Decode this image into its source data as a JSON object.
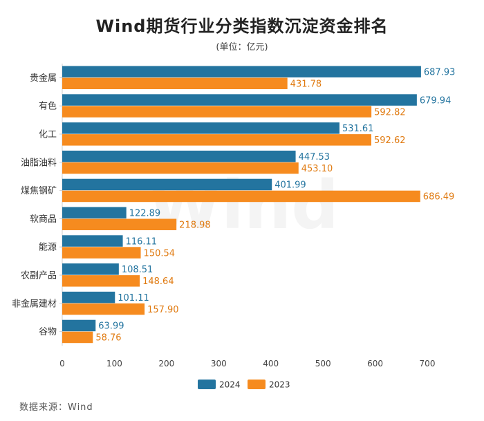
{
  "chart_data": {
    "type": "bar",
    "orientation": "horizontal",
    "title": "Wind期货行业分类指数沉淀资金排名",
    "subtitle": "(单位：亿元)",
    "categories": [
      "贵金属",
      "有色",
      "化工",
      "油脂油料",
      "煤焦钢矿",
      "软商品",
      "能源",
      "农副产品",
      "非金属建材",
      "谷物"
    ],
    "series": [
      {
        "name": "2024",
        "color": "#23749f",
        "label_color": "#23749f",
        "values": [
          687.93,
          679.94,
          531.61,
          447.53,
          401.99,
          122.89,
          116.11,
          108.51,
          101.11,
          63.99
        ],
        "labels": [
          "687.93",
          "679.94",
          "531.61",
          "447.53",
          "401.99",
          "122.89",
          "116.11",
          "108.51",
          "101.11",
          "63.99"
        ]
      },
      {
        "name": "2023",
        "color": "#f68b1f",
        "label_color": "#e07a10",
        "values": [
          431.78,
          592.82,
          592.62,
          453.1,
          686.49,
          218.98,
          150.54,
          148.64,
          157.9,
          58.76
        ],
        "labels": [
          "431.78",
          "592.82",
          "592.62",
          "453.10",
          "686.49",
          "218.98",
          "150.54",
          "148.64",
          "157.90",
          "58.76"
        ]
      }
    ],
    "xlim": [
      0,
      700
    ],
    "xticks": [
      0,
      100,
      200,
      300,
      400,
      500,
      600,
      700
    ],
    "xlabel": "",
    "ylabel": "",
    "grid": false,
    "legend_position": "bottom-center",
    "source": "数据来源：Wind",
    "watermark": "Wind"
  }
}
